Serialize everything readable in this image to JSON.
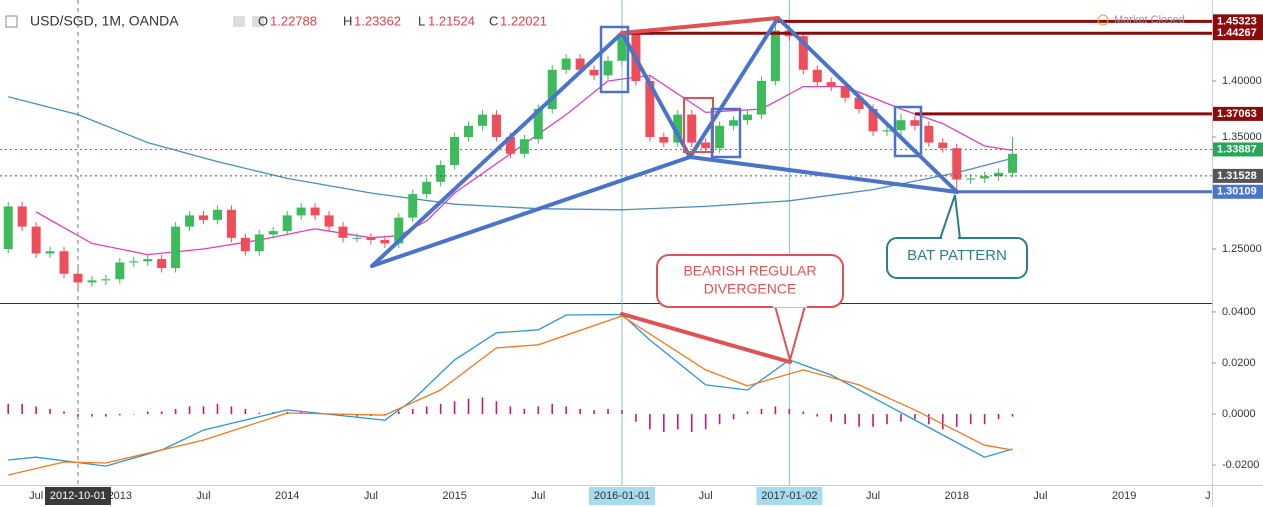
{
  "chart_data": [
    {
      "type": "candlestick",
      "title": "USD/SGD, 1M, OANDA",
      "legend_values": [
        {
          "name": "O",
          "value": 1.22788
        },
        {
          "name": "H",
          "value": 1.23362
        },
        {
          "name": "L",
          "value": 1.21524
        },
        {
          "name": "C",
          "value": 1.22021
        }
      ],
      "status": "Market Closed",
      "annotation": "BAT PATTERN",
      "up_color": "#3dbb5c",
      "down_color": "#ee4d5a",
      "xlim": [
        -0.59,
        86.3
      ],
      "ylim": [
        1.2018,
        1.4723
      ],
      "yticks": [
        {
          "value": 1.4,
          "label": "1.40000"
        },
        {
          "value": 1.35,
          "label": "1.35000"
        },
        {
          "value": 1.25,
          "label": "1.25000"
        }
      ],
      "x": [
        0,
        1,
        2,
        3,
        4,
        5,
        6,
        7,
        8,
        9,
        10,
        11,
        12,
        13,
        14,
        15,
        16,
        17,
        18,
        19,
        20,
        21,
        22,
        23,
        24,
        25,
        26,
        27,
        28,
        29,
        30,
        31,
        32,
        33,
        34,
        35,
        36,
        37,
        38,
        39,
        40,
        41,
        42,
        43,
        44,
        45,
        46,
        47,
        48,
        49,
        50,
        51,
        52,
        53,
        54,
        55,
        56,
        57,
        58,
        59,
        60,
        61,
        62,
        63,
        64,
        65,
        66,
        67,
        68,
        69,
        70,
        71,
        72
      ],
      "open": [
        1.25,
        1.288,
        1.27,
        1.246,
        1.248,
        1.22788,
        1.22021,
        1.222,
        1.223,
        1.238,
        1.239,
        1.241,
        1.233,
        1.27,
        1.28,
        1.276,
        1.285,
        1.26,
        1.248,
        1.263,
        1.266,
        1.28,
        1.287,
        1.28,
        1.27,
        1.26,
        1.26,
        1.258,
        1.255,
        1.278,
        1.299,
        1.31,
        1.325,
        1.35,
        1.36,
        1.37,
        1.35,
        1.335,
        1.348,
        1.375,
        1.41,
        1.42,
        1.41,
        1.405,
        1.418,
        1.442,
        1.4,
        1.35,
        1.345,
        1.37,
        1.345,
        1.34,
        1.36,
        1.365,
        1.37,
        1.4,
        1.445,
        1.44,
        1.41,
        1.399,
        1.395,
        1.385,
        1.375,
        1.355,
        1.356,
        1.365,
        1.36,
        1.345,
        1.34,
        1.312,
        1.313,
        1.315,
        1.318
      ],
      "high": [
        1.292,
        1.292,
        1.274,
        1.252,
        1.252,
        1.23362,
        1.226,
        1.227,
        1.242,
        1.243,
        1.245,
        1.245,
        1.274,
        1.284,
        1.284,
        1.289,
        1.289,
        1.264,
        1.267,
        1.27,
        1.284,
        1.291,
        1.291,
        1.284,
        1.274,
        1.264,
        1.264,
        1.262,
        1.282,
        1.303,
        1.314,
        1.329,
        1.354,
        1.364,
        1.374,
        1.374,
        1.354,
        1.352,
        1.379,
        1.414,
        1.424,
        1.424,
        1.414,
        1.422,
        1.446,
        1.446,
        1.404,
        1.354,
        1.374,
        1.374,
        1.349,
        1.364,
        1.369,
        1.374,
        1.404,
        1.45323,
        1.449,
        1.444,
        1.414,
        1.403,
        1.399,
        1.389,
        1.379,
        1.36,
        1.37063,
        1.369,
        1.364,
        1.349,
        1.344,
        1.317,
        1.319,
        1.322,
        1.35
      ],
      "low": [
        1.246,
        1.266,
        1.242,
        1.242,
        1.2239,
        1.21524,
        1.2162,
        1.218,
        1.219,
        1.234,
        1.235,
        1.229,
        1.229,
        1.266,
        1.272,
        1.272,
        1.256,
        1.244,
        1.244,
        1.259,
        1.262,
        1.276,
        1.276,
        1.266,
        1.256,
        1.256,
        1.254,
        1.251,
        1.251,
        1.274,
        1.295,
        1.306,
        1.321,
        1.346,
        1.356,
        1.346,
        1.331,
        1.331,
        1.344,
        1.371,
        1.406,
        1.406,
        1.401,
        1.401,
        1.414,
        1.396,
        1.346,
        1.341,
        1.341,
        1.341,
        1.336,
        1.336,
        1.356,
        1.361,
        1.366,
        1.396,
        1.436,
        1.406,
        1.395,
        1.391,
        1.381,
        1.371,
        1.351,
        1.351,
        1.352,
        1.356,
        1.341,
        1.336,
        1.30109,
        1.308,
        1.309,
        1.311,
        1.314
      ],
      "close": [
        1.288,
        1.27,
        1.246,
        1.248,
        1.22788,
        1.22021,
        1.222,
        1.223,
        1.238,
        1.239,
        1.241,
        1.233,
        1.27,
        1.28,
        1.276,
        1.285,
        1.26,
        1.248,
        1.263,
        1.266,
        1.28,
        1.287,
        1.28,
        1.27,
        1.26,
        1.26,
        1.258,
        1.255,
        1.278,
        1.299,
        1.31,
        1.325,
        1.35,
        1.36,
        1.37,
        1.35,
        1.335,
        1.348,
        1.375,
        1.41,
        1.42,
        1.41,
        1.405,
        1.418,
        1.442,
        1.4,
        1.35,
        1.345,
        1.37,
        1.345,
        1.34,
        1.36,
        1.365,
        1.37,
        1.4,
        1.445,
        1.44,
        1.41,
        1.399,
        1.395,
        1.385,
        1.375,
        1.355,
        1.356,
        1.365,
        1.36,
        1.345,
        1.34,
        1.312,
        1.313,
        1.315,
        1.318,
        1.335
      ],
      "series": [
        {
          "color": "#e040c0",
          "x": [
            2,
            6,
            10,
            14,
            18,
            22,
            26,
            28,
            30,
            32,
            36,
            40,
            43,
            46,
            50,
            54,
            57,
            60,
            64,
            67,
            70,
            72
          ],
          "values": [
            1.283,
            1.255,
            1.245,
            1.25,
            1.258,
            1.268,
            1.26,
            1.262,
            1.275,
            1.3,
            1.335,
            1.37,
            1.4,
            1.405,
            1.372,
            1.375,
            1.395,
            1.395,
            1.375,
            1.362,
            1.342,
            1.338
          ]
        },
        {
          "color": "#4a8fb8",
          "x": [
            0,
            5,
            10,
            15,
            20,
            26,
            32,
            38,
            44,
            50,
            56,
            62,
            68,
            72
          ],
          "values": [
            1.386,
            1.37,
            1.345,
            1.328,
            1.313,
            1.3,
            1.29,
            1.286,
            1.285,
            1.288,
            1.293,
            1.303,
            1.318,
            1.331
          ]
        }
      ],
      "levels": [
        {
          "value": 1.45323,
          "color": "#8b0a0a",
          "style": "solid"
        },
        {
          "value": 1.44267,
          "color": "#8b0a0a",
          "style": "solid"
        },
        {
          "value": 1.37063,
          "color": "#8b0a0a",
          "style": "solid"
        },
        {
          "value": 1.33887,
          "color": "#26a65b",
          "style": "dotted"
        },
        {
          "value": 1.31528,
          "color": "#555555",
          "style": "dotted"
        },
        {
          "value": 1.30109,
          "color": "#4a74c9",
          "style": "solid"
        }
      ]
    },
    {
      "type": "macd",
      "annotation": [
        "BEARISH REGULAR",
        "DIVERGENCE"
      ],
      "xlim": [
        -0.59,
        86.3
      ],
      "ylim": [
        -0.0278,
        0.0431
      ],
      "yticks": [
        {
          "value": 0.04,
          "label": "0.0400"
        },
        {
          "value": 0.02,
          "label": "0.0200"
        },
        {
          "value": 0,
          "label": "0.0000"
        },
        {
          "value": -0.02,
          "label": "-0.0200"
        }
      ],
      "xticks": [
        {
          "value": 2,
          "label": "Jul"
        },
        {
          "value": 5,
          "label": "2012-10-01"
        },
        {
          "value": 8,
          "label": "2013"
        },
        {
          "value": 14,
          "label": "Jul"
        },
        {
          "value": 20,
          "label": "2014"
        },
        {
          "value": 26,
          "label": "Jul"
        },
        {
          "value": 32,
          "label": "2015"
        },
        {
          "value": 38,
          "label": "Jul"
        },
        {
          "value": 44,
          "label": "2016-01-01"
        },
        {
          "value": 50,
          "label": "Jul"
        },
        {
          "value": 56,
          "label": "2017-01-02"
        },
        {
          "value": 62,
          "label": "Jul"
        },
        {
          "value": 68,
          "label": "2018"
        },
        {
          "value": 74,
          "label": "Jul"
        },
        {
          "value": 80,
          "label": "2019"
        },
        {
          "value": 86,
          "label": "J"
        }
      ],
      "crosshair_x": 5,
      "marked_x": [
        44,
        56
      ],
      "series": [
        {
          "style": "histogram",
          "color": "#c2187a",
          "x": [
            0,
            1,
            2,
            3,
            4,
            5,
            6,
            7,
            8,
            9,
            10,
            11,
            12,
            13,
            14,
            15,
            16,
            17,
            18,
            19,
            20,
            21,
            22,
            23,
            24,
            25,
            26,
            27,
            28,
            29,
            30,
            31,
            32,
            33,
            34,
            35,
            36,
            37,
            38,
            39,
            40,
            41,
            42,
            43,
            44,
            45,
            46,
            47,
            48,
            49,
            50,
            51,
            52,
            53,
            54,
            55,
            56,
            57,
            58,
            59,
            60,
            61,
            62,
            63,
            64,
            65,
            66,
            67,
            68,
            69,
            70,
            71,
            72
          ],
          "values": [
            0.004,
            0.004,
            0.003,
            0.002,
            0.001,
            -0.001,
            -0.001,
            -0.001,
            -0.0005,
            -0.0002,
            0.001,
            0.001,
            0.002,
            0.003,
            0.003,
            0.004,
            0.003,
            0.002,
            0.0005,
            0.0008,
            0.0009,
            0.001,
            0.0005,
            -0.0003,
            -0.0005,
            -0.001,
            -0.0008,
            -0.0005,
            0.001,
            0.002,
            0.003,
            0.004,
            0.005,
            0.006,
            0.0065,
            0.005,
            0.003,
            0.002,
            0.003,
            0.004,
            0.003,
            0.002,
            0.0015,
            0.002,
            0.0015,
            -0.003,
            -0.006,
            -0.007,
            -0.006,
            -0.007,
            -0.006,
            -0.004,
            -0.002,
            0.001,
            0.002,
            0.003,
            0.002,
            0.001,
            -0.001,
            -0.003,
            -0.004,
            -0.005,
            -0.005,
            -0.004,
            -0.003,
            -0.002,
            -0.004,
            -0.006,
            -0.005,
            -0.004,
            -0.004,
            -0.002,
            -0.001
          ]
        },
        {
          "style": "line",
          "color": "#2f95d8",
          "x": [
            0,
            2,
            7,
            11,
            14,
            20,
            27,
            29,
            32,
            35,
            38,
            40,
            44,
            46,
            50,
            53,
            56,
            59,
            63,
            67,
            70,
            72
          ],
          "values": [
            -0.018,
            -0.0169,
            -0.0204,
            -0.0141,
            -0.0063,
            0.0016,
            -0.0024,
            0.0055,
            0.0212,
            0.0318,
            0.033,
            0.0388,
            0.039,
            0.029,
            0.0114,
            0.0094,
            0.0212,
            0.0153,
            0.0035,
            -0.0082,
            -0.0169,
            -0.0137
          ]
        },
        {
          "style": "line",
          "color": "#f07a22",
          "x": [
            0,
            4,
            7,
            14,
            20,
            27,
            31,
            35,
            38,
            44,
            50,
            53,
            57,
            61,
            65,
            70,
            72
          ],
          "values": [
            -0.0239,
            -0.0188,
            -0.0192,
            -0.0102,
            0.0004,
            -0.0004,
            0.0094,
            0.0259,
            0.0271,
            0.0384,
            0.0173,
            0.011,
            0.0173,
            0.0114,
            0.0016,
            -0.0122,
            -0.0141
          ]
        }
      ]
    }
  ]
}
